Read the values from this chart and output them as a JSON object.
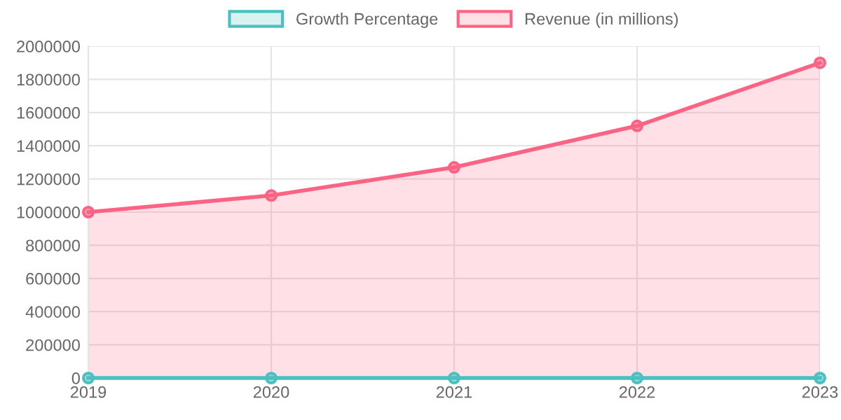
{
  "chart_data": {
    "type": "area",
    "categories": [
      "2019",
      "2020",
      "2021",
      "2022",
      "2023"
    ],
    "series": [
      {
        "name": "Growth Percentage",
        "type": "line",
        "color": "#4bc0c0",
        "values": [
          0,
          0,
          0,
          0,
          0
        ]
      },
      {
        "name": "Revenue (in millions)",
        "color": "#ff6384",
        "values": [
          1000000,
          1100000,
          1270000,
          1520000,
          1900000
        ]
      }
    ],
    "ylim": [
      0,
      2000000
    ],
    "yticks": [
      0,
      200000,
      400000,
      600000,
      800000,
      1000000,
      1200000,
      1400000,
      1600000,
      1800000,
      2000000
    ],
    "grid": true,
    "legend": "top",
    "marker": "circle",
    "line_style": "solid"
  }
}
